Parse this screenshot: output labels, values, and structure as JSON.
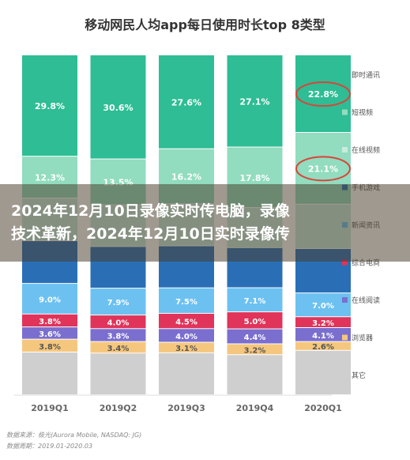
{
  "chart_data": {
    "type": "bar",
    "stacked": true,
    "percent": true,
    "title": "移动网民人均app每日使用时长top 8类型",
    "categories": [
      "2019Q1",
      "2019Q2",
      "2019Q3",
      "2019Q4",
      "2020Q1"
    ],
    "series": [
      {
        "name": "其它",
        "color": "#cfcfcf",
        "values": [
          null,
          null,
          null,
          null,
          null
        ]
      },
      {
        "name": "浏览器",
        "color": "#f5c77e",
        "values": [
          3.8,
          3.4,
          3.1,
          3.2,
          2.6
        ]
      },
      {
        "name": "在线阅读",
        "color": "#7a6fcf",
        "values": [
          3.6,
          3.8,
          4.0,
          4.4,
          4.1
        ]
      },
      {
        "name": "综合电商",
        "color": "#e0345a",
        "values": [
          3.8,
          4.0,
          4.5,
          5.0,
          3.2
        ]
      },
      {
        "name": "新闻资讯",
        "color": "#6cc1f1",
        "values": [
          9.0,
          7.9,
          7.5,
          7.1,
          7.0
        ]
      },
      {
        "name": "手机游戏",
        "color": "#2a6fb6",
        "values": [
          null,
          null,
          null,
          null,
          null
        ]
      },
      {
        "name": "在线视频",
        "color": "#c7ebdf",
        "values": [
          null,
          null,
          null,
          null,
          null
        ]
      },
      {
        "name": "短视频",
        "color": "#92dcbf",
        "values": [
          12.3,
          13.5,
          16.2,
          17.8,
          21.1
        ]
      },
      {
        "name": "即时通讯",
        "color": "#2ebd94",
        "values": [
          29.8,
          30.6,
          27.6,
          27.1,
          22.8
        ]
      }
    ],
    "ylim": [
      0,
      100
    ],
    "legend_position": "right",
    "highlight": {
      "category": "2020Q1",
      "series": [
        "即时通讯",
        "短视频"
      ],
      "color": "#d9453a"
    }
  },
  "banner": {
    "text": "2024年12月10日录像实时传电脑，录像技术革新，2024年12月10日实时录像传"
  },
  "source": {
    "line1": "数据来源：极光(Aurora Mobile, NASDAQ: JG)",
    "line2": "数据周期：2019.01-2020.03"
  }
}
